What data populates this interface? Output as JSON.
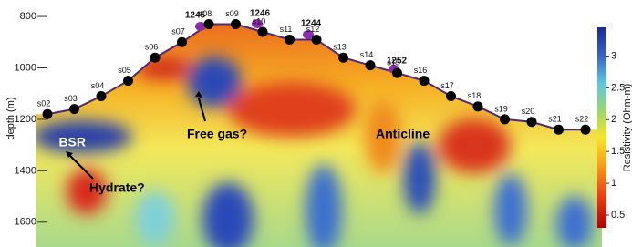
{
  "chart_data": {
    "type": "section",
    "y_label": "depth (m)",
    "ylim": [
      770,
      1700
    ],
    "yticks": [
      800,
      1000,
      1200,
      1400,
      1600
    ],
    "stations": [
      "s02",
      "s03",
      "s04",
      "s05",
      "s06",
      "s07",
      "s08",
      "s09",
      "s10",
      "s11",
      "s12",
      "s13",
      "s14",
      "s15",
      "s16",
      "s17",
      "s18",
      "s19",
      "s20",
      "s21",
      "s22"
    ],
    "station_depths": [
      1180,
      1160,
      1110,
      1050,
      960,
      900,
      830,
      830,
      860,
      890,
      890,
      960,
      990,
      1020,
      1050,
      1110,
      1150,
      1200,
      1210,
      1240,
      1240
    ],
    "sites": [
      "1245",
      "1246",
      "1244",
      "1252"
    ],
    "annotations": [
      "BSR",
      "Free gas?",
      "Hydrate?",
      "Anticline"
    ],
    "colorbar_label": "Resistivity (Ohm-m)",
    "clim": [
      0.3,
      3.45
    ],
    "cticks": [
      0.5,
      1,
      1.5,
      2,
      2.5,
      3
    ]
  }
}
